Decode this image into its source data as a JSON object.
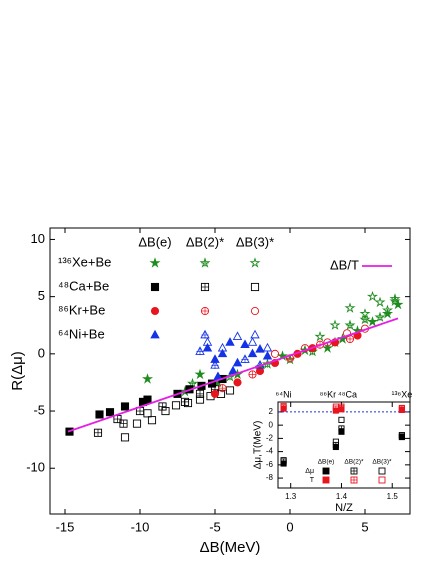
{
  "chart_data": [
    {
      "type": "scatter",
      "xlabel": "ΔB(MeV)",
      "ylabel": "R(Δμ)",
      "xlim": [
        -16,
        8
      ],
      "ylim": [
        -14,
        11
      ],
      "xticks": [
        -15,
        -10,
        -5,
        0,
        5
      ],
      "yticks": [
        10,
        5,
        0,
        -5,
        -10
      ],
      "methods": [
        {
          "name": "ΔB(e)",
          "fill": "solid"
        },
        {
          "name": "ΔB(2)*",
          "fill": "crossed"
        },
        {
          "name": "ΔB(3)*",
          "fill": "open"
        }
      ],
      "systems": [
        {
          "name": "¹³⁶Xe+Be",
          "color": "#1e8c1e",
          "marker": "star",
          "series": [
            {
              "x": [
                -9.5,
                -7,
                -6,
                -4.8,
                -3.5,
                -2,
                -0.5,
                1,
                2.5,
                3.5,
                4.5,
                5.5,
                6.5,
                7.2
              ],
              "values": [
                -2.2,
                -3.3,
                -1.8,
                -2.5,
                -1.8,
                -1.2,
                -0.2,
                0.3,
                0.5,
                1.3,
                2,
                2.8,
                3.5,
                4.3
              ]
            },
            {
              "x": [
                -6.5,
                -4,
                -1.5,
                0,
                1.5,
                3,
                4,
                5,
                6,
                7
              ],
              "values": [
                -2.6,
                -2,
                -0.9,
                -0.5,
                0.2,
                1,
                2.5,
                3,
                3.2,
                4.6
              ]
            },
            {
              "x": [
                2,
                3,
                4,
                5,
                5.5,
                6,
                6.5,
                7
              ],
              "values": [
                1.5,
                2.5,
                4,
                3.5,
                5,
                4.5,
                3.8,
                4.8
              ]
            }
          ]
        },
        {
          "name": "⁴⁸Ca+Be",
          "color": "#000000",
          "marker": "square",
          "series": [
            {
              "x": [
                -14.7,
                -12.7,
                -12,
                -11,
                -9.8,
                -9.5,
                -7.5,
                -6.7,
                -5.9,
                -5.2,
                -4.5
              ],
              "values": [
                -6.8,
                -5.3,
                -5.1,
                -4.6,
                -4.2,
                -4,
                -3.5,
                -3.1,
                -2.8,
                -2.6,
                -2.2
              ]
            },
            {
              "x": [
                -12.8,
                -11.5,
                -11.1,
                -10,
                -8.5,
                -7,
                -6,
                -5
              ],
              "values": [
                -6.9,
                -5.7,
                -6.1,
                -5,
                -4.6,
                -4.2,
                -3.5,
                -3.1
              ]
            },
            {
              "x": [
                -11,
                -10.2,
                -9.5,
                -9.2,
                -8.3,
                -7.6,
                -6.8,
                -6,
                -5.3,
                -4.6,
                -4
              ],
              "values": [
                -7.3,
                -6.1,
                -5.2,
                -5.8,
                -5,
                -4.5,
                -4.3,
                -4,
                -3.7,
                -3.5,
                -3.2
              ]
            }
          ]
        },
        {
          "name": "⁸⁶Kr+Be",
          "color": "#e8141e",
          "marker": "circle",
          "series": [
            {
              "x": [
                -5,
                -3.5,
                -2,
                -1,
                0.5,
                1.5,
                3,
                4.5
              ],
              "values": [
                -3.5,
                -2.5,
                -1.5,
                -0.8,
                0,
                0.5,
                1,
                1.6
              ]
            },
            {
              "x": [
                -4.5,
                -2.5,
                0,
                2,
                4
              ],
              "values": [
                -3,
                -1.8,
                -0.4,
                0.8,
                1.3
              ]
            },
            {
              "x": [
                -1,
                1,
                2.5,
                3.8,
                5
              ],
              "values": [
                0,
                0.5,
                1,
                1.8,
                2.2
              ]
            }
          ]
        },
        {
          "name": "⁶⁴Ni+Be",
          "color": "#1432e6",
          "marker": "triangle",
          "series": [
            {
              "x": [
                -5.5,
                -5,
                -4.5,
                -4,
                -3.5,
                -3,
                -2.5,
                -2,
                -1.5,
                -4.8,
                -3.8
              ],
              "values": [
                0.5,
                -0.5,
                0,
                1,
                -0.8,
                0.8,
                0,
                0.4,
                -0.2,
                -2,
                -1.5
              ]
            },
            {
              "x": [
                -6,
                -5,
                -3,
                -2
              ],
              "values": [
                0.2,
                -1,
                -0.5,
                -1
              ]
            },
            {
              "x": [
                -5.5,
                -4.5,
                -3.5,
                -2.5,
                -1.5
              ],
              "values": [
                1,
                0.5,
                1.5,
                1,
                0.5
              ]
            }
          ]
        }
      ],
      "line": {
        "name": "ΔB/T",
        "color": "#e61ee6",
        "x": [
          -14.8,
          7.2
        ],
        "values": [
          -6.8,
          3.1
        ]
      }
    },
    {
      "type": "inset",
      "xlabel": "N/Z",
      "ylabel": "Δμ,T(MeV)",
      "xlim": [
        1.275,
        1.535
      ],
      "ylim": [
        -9.5,
        3.5
      ],
      "xticks": [
        1.3,
        1.4,
        1.5
      ],
      "yticks": [
        2,
        0,
        -2,
        -4,
        -6,
        -8
      ],
      "x": [
        1.286,
        1.389,
        1.4,
        1.519
      ],
      "top_labels": [
        "⁶⁴Ni",
        "⁸⁶Kr",
        "⁴⁸Ca",
        "¹³⁶Xe"
      ],
      "reference_line": 2,
      "reference_color": "#1432e6",
      "methods": [
        {
          "name": "ΔB(e)",
          "fill": "solid"
        },
        {
          "name": "ΔB(2)*",
          "fill": "crossed"
        },
        {
          "name": "ΔB(3)*",
          "fill": "open"
        }
      ],
      "rows": [
        {
          "name": "Δμ",
          "color": "#000000",
          "marker": "square",
          "series": [
            {
              "values": [
                -5.8,
                -3.3,
                -1,
                -1.8
              ]
            },
            {
              "values": [
                -5.5,
                -3,
                -0.5,
                -1.7
              ]
            },
            {
              "values": [
                -5.3,
                -2.5,
                0.8,
                -1.5
              ]
            }
          ]
        },
        {
          "name": "T",
          "color": "#e8141e",
          "marker": "square",
          "series": [
            {
              "values": [
                2.5,
                2.2,
                2.4,
                2.3
              ]
            },
            {
              "values": [
                2.7,
                2.5,
                2.6,
                2.5
              ]
            },
            {
              "values": [
                2.9,
                2.8,
                2.8,
                2.6
              ]
            }
          ]
        }
      ]
    }
  ]
}
